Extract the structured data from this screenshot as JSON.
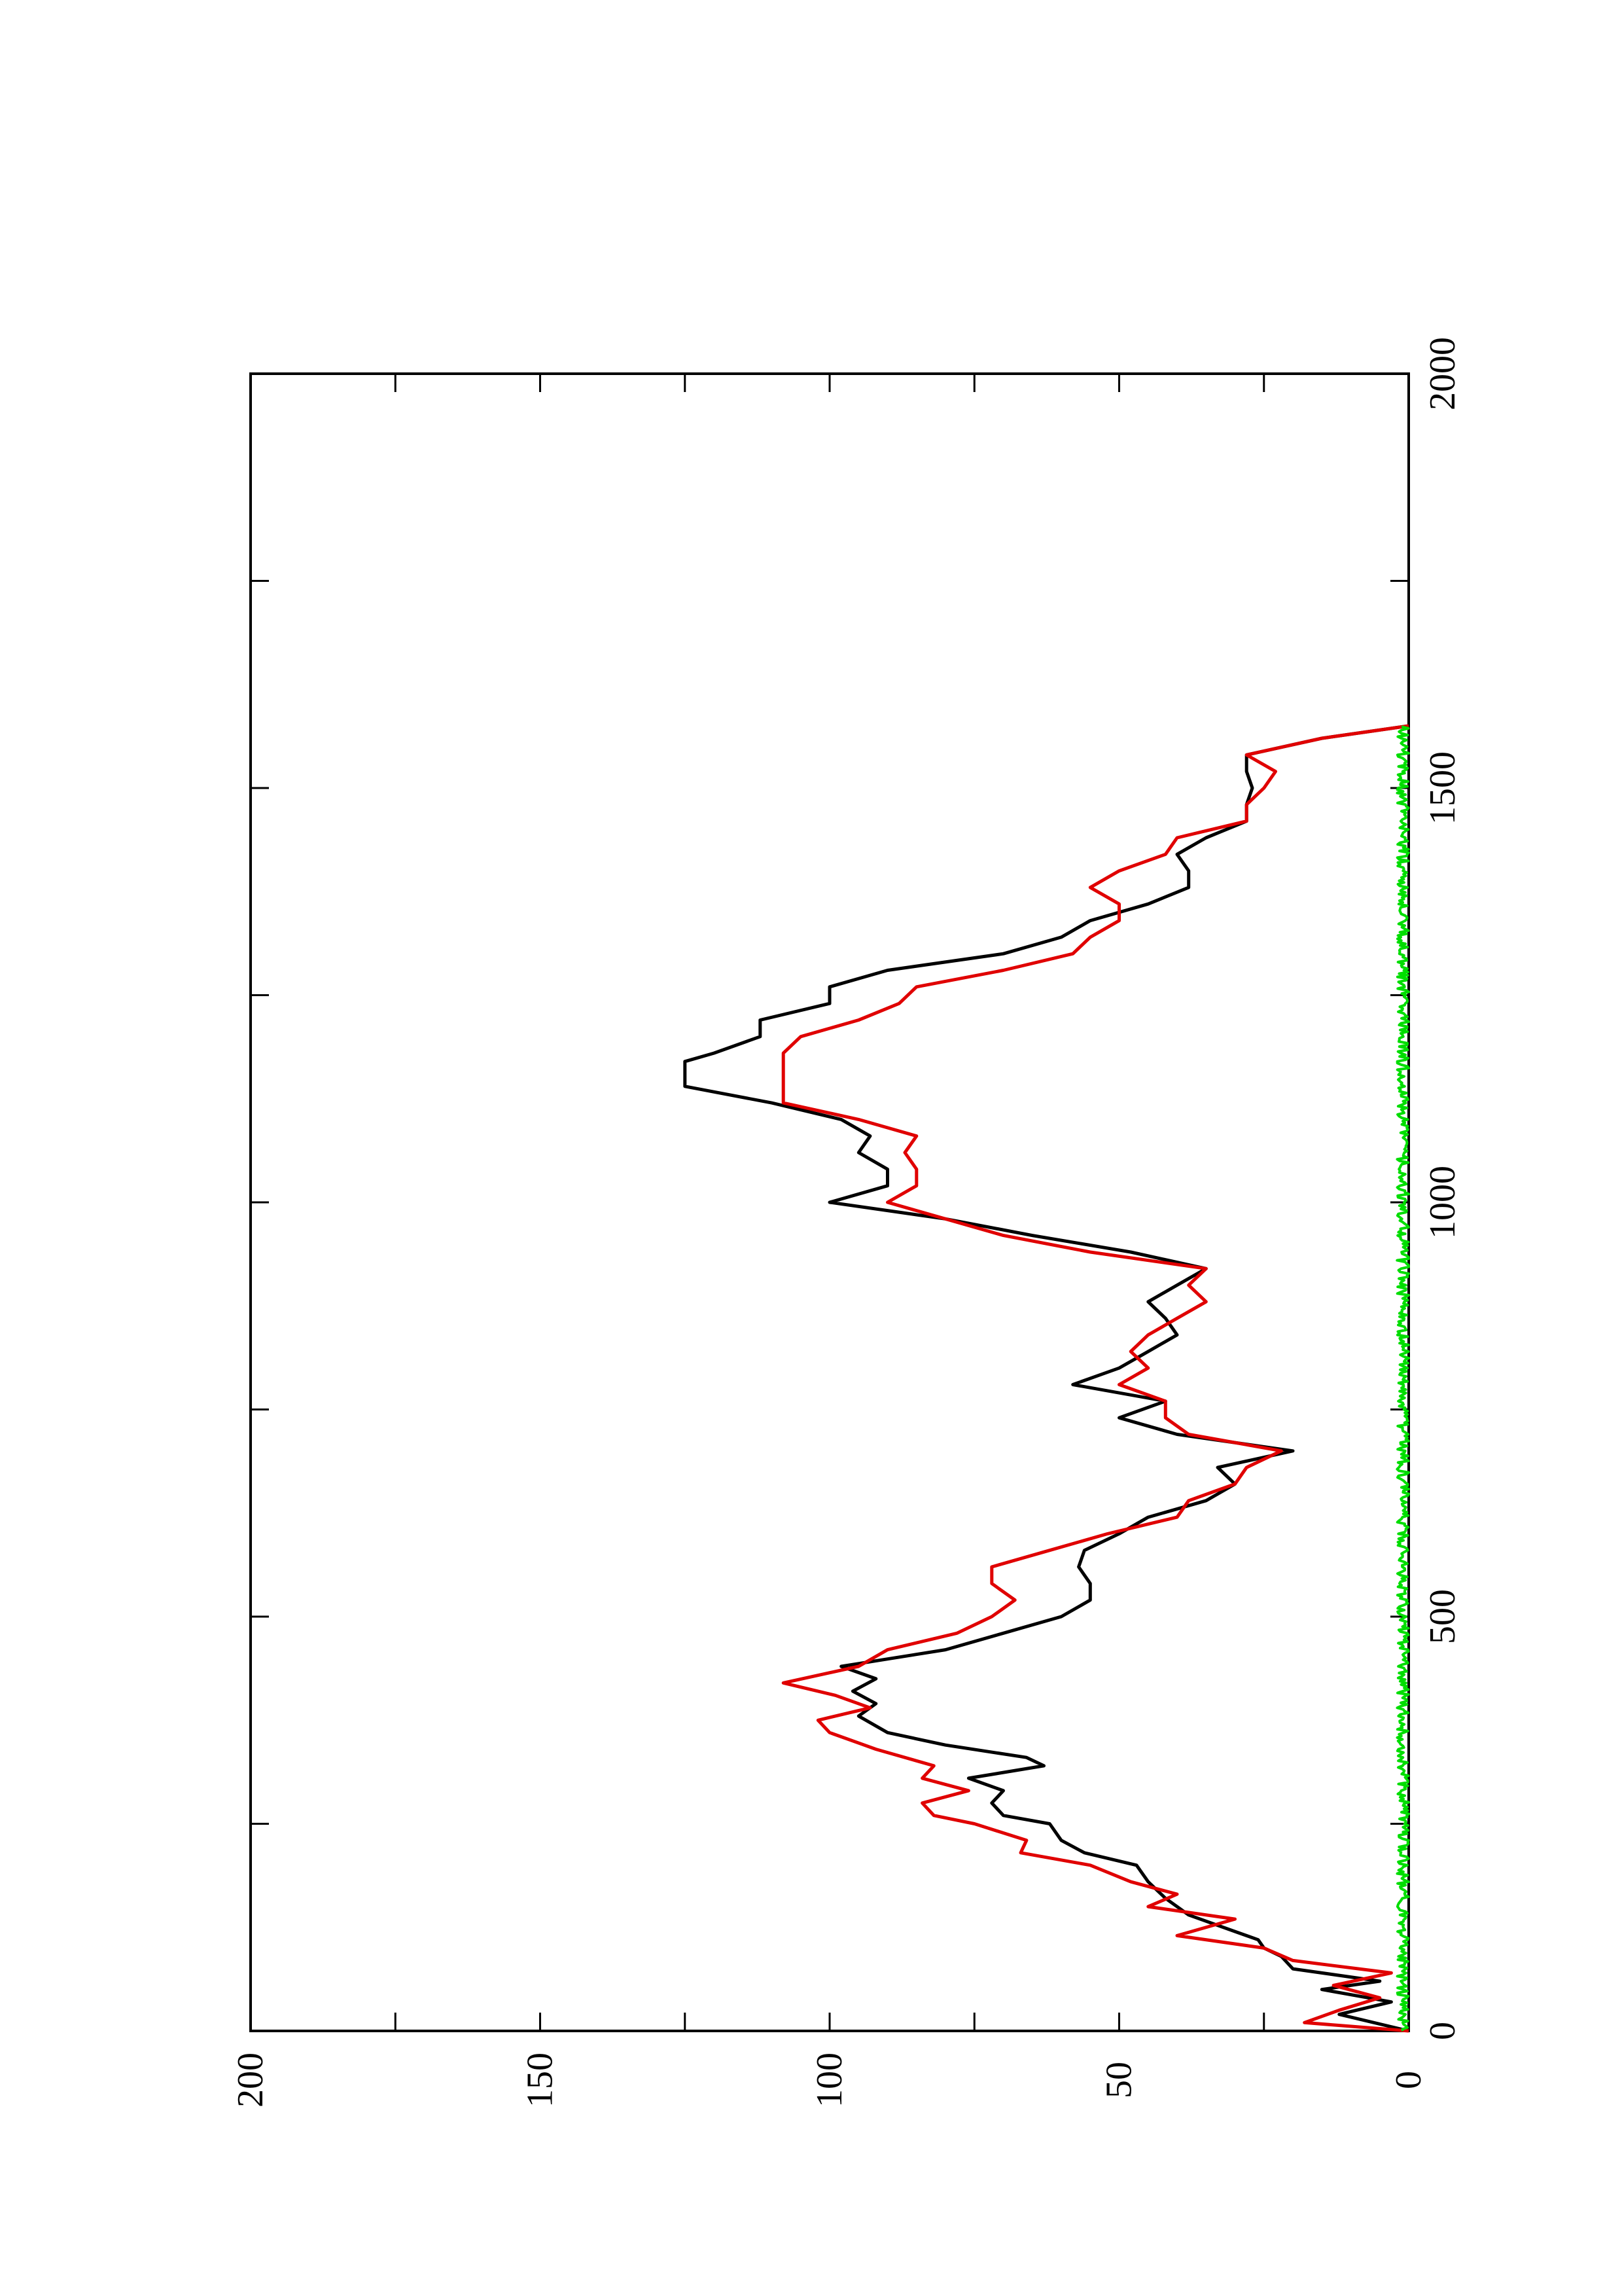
{
  "chart_data": {
    "type": "line",
    "orientation": "rotated-90-ccw",
    "title": "",
    "xlabel": "",
    "ylabel": "",
    "xlim": [
      0,
      2000
    ],
    "ylim": [
      0,
      200
    ],
    "x_ticks": [
      0,
      500,
      1000,
      1500,
      2000
    ],
    "y_ticks": [
      0,
      50,
      100,
      150,
      200
    ],
    "x_tick_labels": [
      "0",
      "500",
      "1000",
      "1500",
      "2000"
    ],
    "y_tick_labels": [
      "0",
      "50",
      "100",
      "150",
      "200"
    ],
    "x_minor_ticks": [
      250,
      750,
      1250,
      1750
    ],
    "y_minor_ticks": [
      25,
      75,
      125,
      175
    ],
    "grid": false,
    "legend": "none",
    "series": [
      {
        "color": "#000000",
        "x": [
          0,
          20,
          35,
          50,
          60,
          75,
          90,
          100,
          110,
          120,
          140,
          160,
          180,
          200,
          215,
          230,
          250,
          260,
          275,
          290,
          305,
          320,
          330,
          345,
          360,
          380,
          395,
          410,
          425,
          440,
          460,
          480,
          500,
          520,
          540,
          560,
          580,
          600,
          620,
          640,
          660,
          680,
          700,
          720,
          740,
          760,
          780,
          800,
          820,
          840,
          860,
          880,
          900,
          920,
          940,
          960,
          980,
          1000,
          1020,
          1040,
          1060,
          1080,
          1100,
          1120,
          1140,
          1160,
          1170,
          1180,
          1200,
          1220,
          1240,
          1260,
          1280,
          1300,
          1320,
          1340,
          1360,
          1380,
          1400,
          1420,
          1440,
          1460,
          1480,
          1500,
          1520,
          1540,
          1560,
          1575
        ],
        "y": [
          0,
          12,
          3,
          15,
          5,
          20,
          22,
          25,
          26,
          30,
          38,
          42,
          45,
          47,
          56,
          60,
          62,
          70,
          72,
          70,
          76,
          63,
          66,
          80,
          90,
          95,
          92,
          96,
          92,
          98,
          80,
          70,
          60,
          55,
          55,
          57,
          56,
          50,
          45,
          35,
          30,
          33,
          20,
          40,
          50,
          42,
          58,
          50,
          45,
          40,
          42,
          45,
          40,
          35,
          48,
          65,
          80,
          100,
          90,
          90,
          95,
          93,
          98,
          110,
          125,
          125,
          125,
          120,
          112,
          112,
          100,
          100,
          90,
          70,
          60,
          55,
          45,
          38,
          38,
          40,
          35,
          28,
          28,
          27,
          28,
          28,
          15,
          0
        ]
      },
      {
        "color": "#e00000",
        "x": [
          0,
          10,
          25,
          40,
          55,
          70,
          85,
          100,
          115,
          135,
          150,
          165,
          180,
          200,
          215,
          230,
          250,
          260,
          275,
          290,
          305,
          320,
          340,
          360,
          375,
          390,
          405,
          420,
          440,
          460,
          480,
          500,
          520,
          540,
          560,
          580,
          600,
          620,
          640,
          660,
          680,
          700,
          720,
          740,
          760,
          780,
          800,
          820,
          840,
          860,
          880,
          900,
          920,
          940,
          960,
          980,
          1000,
          1020,
          1040,
          1060,
          1080,
          1100,
          1120,
          1140,
          1160,
          1180,
          1200,
          1220,
          1240,
          1260,
          1280,
          1300,
          1320,
          1340,
          1360,
          1380,
          1400,
          1420,
          1440,
          1460,
          1480,
          1500,
          1520,
          1540,
          1560,
          1575
        ],
        "y": [
          0,
          18,
          12,
          5,
          13,
          3,
          20,
          25,
          40,
          30,
          45,
          40,
          48,
          55,
          67,
          66,
          75,
          82,
          84,
          76,
          84,
          82,
          92,
          100,
          102,
          93,
          99,
          108,
          95,
          90,
          78,
          72,
          68,
          72,
          72,
          62,
          52,
          40,
          38,
          30,
          28,
          22,
          38,
          42,
          42,
          50,
          45,
          48,
          45,
          40,
          35,
          38,
          35,
          55,
          70,
          80,
          90,
          85,
          85,
          87,
          85,
          95,
          108,
          108,
          108,
          108,
          105,
          95,
          88,
          85,
          70,
          58,
          55,
          50,
          50,
          55,
          50,
          42,
          40,
          28,
          28,
          25,
          23,
          28,
          15,
          0
        ]
      },
      {
        "color": "#00dd00",
        "x": [
          0,
          1575
        ],
        "y_range": [
          0,
          2
        ]
      }
    ]
  }
}
